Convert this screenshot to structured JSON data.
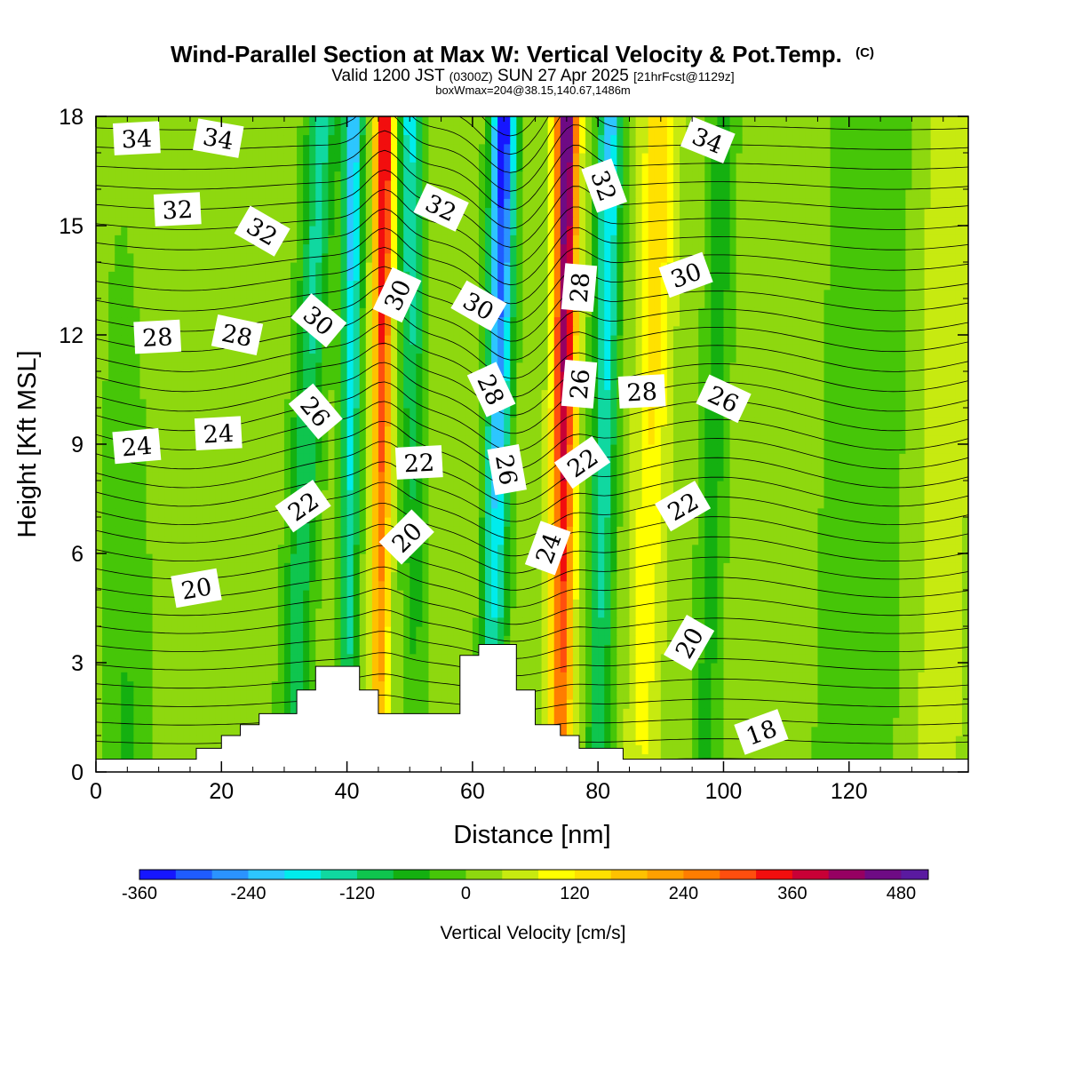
{
  "chart_data": {
    "type": "heatmap",
    "title": "Wind-Parallel Section at Max W: Vertical Velocity & Pot.Temp.",
    "title_mark": "(C)",
    "subtitle_parts": [
      "Valid 1200 JST",
      "(0300Z)",
      "SUN 27 Apr 2025",
      "[21hrFcst@1129z]"
    ],
    "subtitle2": "boxWmax=204@38.15,140.67,1486m",
    "xlabel": "Distance [nm]",
    "ylabel": "Height [Kft MSL]",
    "xlim": [
      0,
      139
    ],
    "ylim": [
      0,
      18
    ],
    "xticks": [
      0,
      20,
      40,
      60,
      80,
      100,
      120
    ],
    "yticks": [
      0,
      3,
      6,
      9,
      12,
      15,
      18
    ],
    "colorbar": {
      "label": "Vertical Velocity [cm/s]",
      "min": -360,
      "max": 510,
      "step": 40,
      "tick_values": [
        -360,
        -240,
        -120,
        0,
        120,
        240,
        360,
        480
      ],
      "colors": [
        "#1616ff",
        "#1f5cff",
        "#2b93ff",
        "#2dc6ff",
        "#00ecec",
        "#10d8a0",
        "#0fc54e",
        "#14b010",
        "#46c608",
        "#8ed80f",
        "#c7ea10",
        "#ffff00",
        "#ffe100",
        "#ffc100",
        "#ffa000",
        "#ff7d00",
        "#ff4e0e",
        "#f20e0e",
        "#c80036",
        "#960062",
        "#6e0b84",
        "#5a1aa0"
      ]
    },
    "terrain_kft": [
      [
        0,
        0.35
      ],
      [
        16,
        0.35
      ],
      [
        16,
        0.65
      ],
      [
        20,
        0.65
      ],
      [
        20,
        1.0
      ],
      [
        23,
        1.0
      ],
      [
        23,
        1.3
      ],
      [
        26,
        1.3
      ],
      [
        26,
        1.6
      ],
      [
        32,
        1.6
      ],
      [
        32,
        2.25
      ],
      [
        35,
        2.25
      ],
      [
        35,
        2.9
      ],
      [
        42,
        2.9
      ],
      [
        42,
        2.25
      ],
      [
        45,
        2.25
      ],
      [
        45,
        1.6
      ],
      [
        58,
        1.6
      ],
      [
        58,
        3.2
      ],
      [
        61,
        3.2
      ],
      [
        61,
        3.5
      ],
      [
        67,
        3.5
      ],
      [
        67,
        2.25
      ],
      [
        70,
        2.25
      ],
      [
        70,
        1.3
      ],
      [
        74,
        1.3
      ],
      [
        74,
        1.0
      ],
      [
        77,
        1.0
      ],
      [
        77,
        0.65
      ],
      [
        84,
        0.65
      ],
      [
        84,
        0.35
      ],
      [
        139,
        0.35
      ]
    ],
    "w_bands": [
      {
        "x_base": 31,
        "x_top": 36,
        "w_base": -110,
        "w_top": -160,
        "sigma": 2.4
      },
      {
        "x_base": 40,
        "x_top": 41,
        "w_base": -120,
        "w_top": -260,
        "sigma": 1.6
      },
      {
        "x_base": 45,
        "x_top": 46,
        "w_base": 160,
        "w_top": 380,
        "sigma": 1.5
      },
      {
        "x_base": 51,
        "x_top": 50,
        "w_base": -30,
        "w_top": -200,
        "sigma": 2.0
      },
      {
        "x_base": 63,
        "x_top": 65,
        "w_base": -120,
        "w_top": -380,
        "sigma": 2.0
      },
      {
        "x_base": 74,
        "x_top": 75,
        "w_base": 230,
        "w_top": 480,
        "sigma": 1.8
      },
      {
        "x_base": 80,
        "x_top": 82,
        "w_base": -110,
        "w_top": -240,
        "sigma": 2.0
      },
      {
        "x_base": 87,
        "x_top": 90,
        "w_base": 60,
        "w_top": 140,
        "sigma": 2.6
      },
      {
        "x_base": 97,
        "x_top": 100,
        "w_base": -70,
        "w_top": -90,
        "sigma": 2.2
      },
      {
        "x_base": 5,
        "x_top": 4,
        "w_base": -70,
        "w_top": -10,
        "sigma": 4.0
      },
      {
        "x_base": 121,
        "x_top": 124,
        "w_base": -50,
        "w_top": -50,
        "sigma": 7.0
      },
      {
        "x_base": 134,
        "x_top": 136,
        "w_base": 40,
        "w_top": 60,
        "sigma": 4.0
      }
    ],
    "theta_contour_interval": 0.5,
    "theta_labels": [
      {
        "text": "34",
        "x": 6.5,
        "y": 17.4,
        "angle": -3
      },
      {
        "text": "34",
        "x": 19.5,
        "y": 17.4,
        "angle": 10
      },
      {
        "text": "34",
        "x": 97.5,
        "y": 17.35,
        "angle": 22
      },
      {
        "text": "32",
        "x": 13,
        "y": 15.45,
        "angle": -3
      },
      {
        "text": "32",
        "x": 26.5,
        "y": 14.85,
        "angle": 30
      },
      {
        "text": "32",
        "x": 55,
        "y": 15.5,
        "angle": 25
      },
      {
        "text": "32",
        "x": 81,
        "y": 16.1,
        "angle": 70
      },
      {
        "text": "30",
        "x": 35.5,
        "y": 12.4,
        "angle": 40
      },
      {
        "text": "30",
        "x": 48,
        "y": 13.1,
        "angle": -65
      },
      {
        "text": "30",
        "x": 61,
        "y": 12.8,
        "angle": 30
      },
      {
        "text": "30",
        "x": 94,
        "y": 13.65,
        "angle": -20
      },
      {
        "text": "28",
        "x": 9.8,
        "y": 11.95,
        "angle": -3
      },
      {
        "text": "28",
        "x": 22.5,
        "y": 12.0,
        "angle": 12
      },
      {
        "text": "28",
        "x": 63,
        "y": 10.5,
        "angle": 65
      },
      {
        "text": "28",
        "x": 77,
        "y": 13.3,
        "angle": -85
      },
      {
        "text": "28",
        "x": 87,
        "y": 10.45,
        "angle": -3
      },
      {
        "text": "26",
        "x": 35,
        "y": 9.9,
        "angle": 50
      },
      {
        "text": "26",
        "x": 77,
        "y": 10.65,
        "angle": -85
      },
      {
        "text": "26",
        "x": 100,
        "y": 10.25,
        "angle": 25
      },
      {
        "text": "26",
        "x": 65.5,
        "y": 8.3,
        "angle": 80
      },
      {
        "text": "24",
        "x": 6.5,
        "y": 8.95,
        "angle": -5
      },
      {
        "text": "24",
        "x": 19.5,
        "y": 9.3,
        "angle": -3
      },
      {
        "text": "24",
        "x": 72,
        "y": 6.15,
        "angle": -70
      },
      {
        "text": "22",
        "x": 33,
        "y": 7.3,
        "angle": -35
      },
      {
        "text": "22",
        "x": 51.5,
        "y": 8.5,
        "angle": -3
      },
      {
        "text": "22",
        "x": 77.5,
        "y": 8.5,
        "angle": -35
      },
      {
        "text": "22",
        "x": 93.5,
        "y": 7.3,
        "angle": -30
      },
      {
        "text": "20",
        "x": 16,
        "y": 5.05,
        "angle": -10
      },
      {
        "text": "20",
        "x": 49.5,
        "y": 6.45,
        "angle": -45
      },
      {
        "text": "20",
        "x": 94.5,
        "y": 3.55,
        "angle": -60
      },
      {
        "text": "18",
        "x": 106,
        "y": 1.1,
        "angle": -20
      }
    ]
  }
}
